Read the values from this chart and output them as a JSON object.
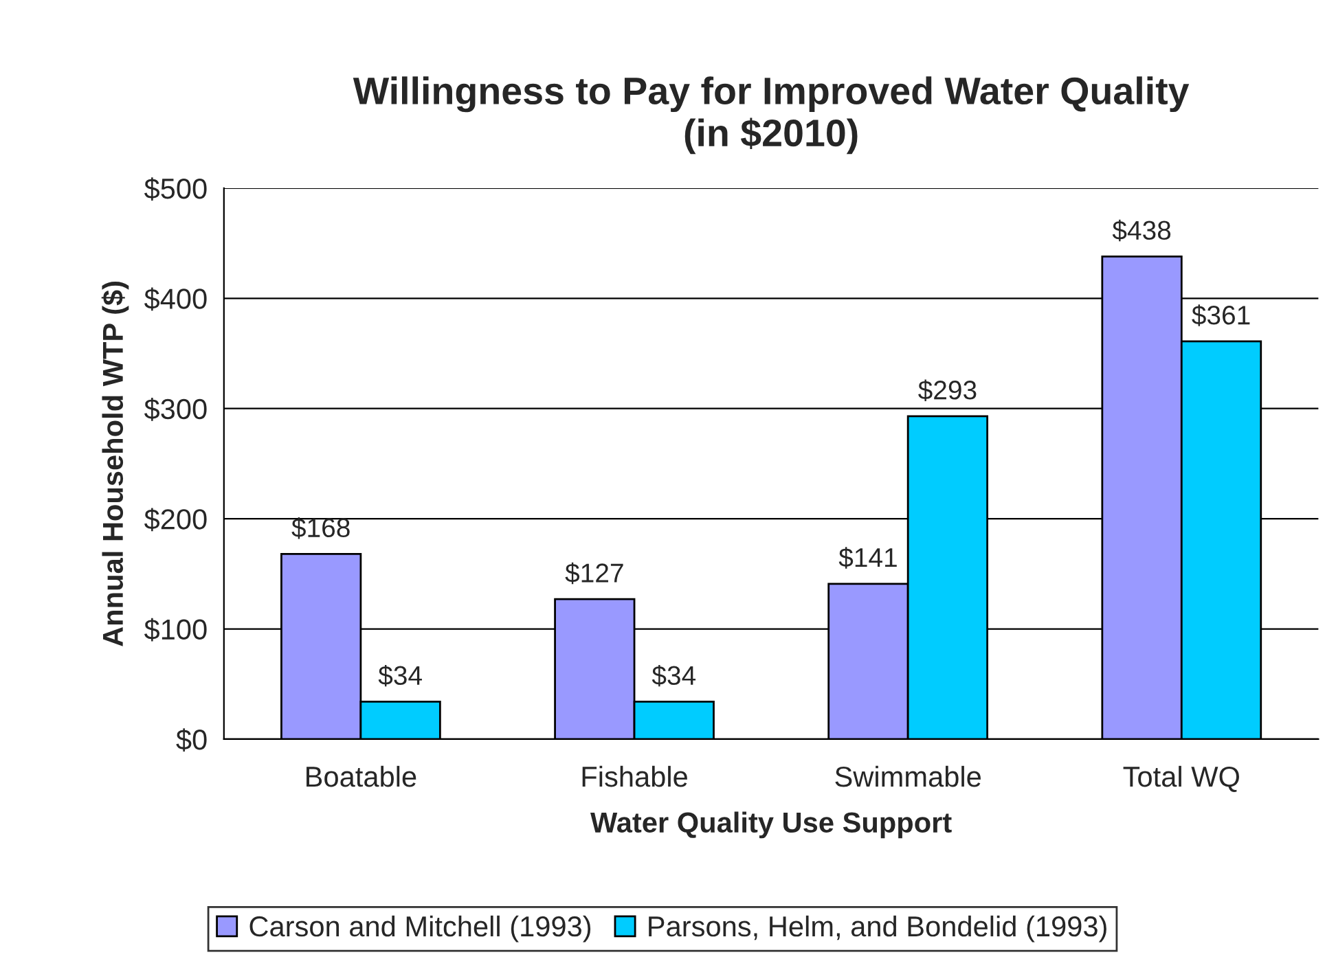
{
  "chart_data": {
    "type": "bar",
    "title": "Willingness to Pay for Improved Water Quality\n(in $2010)",
    "xlabel": "Water Quality Use Support",
    "ylabel": "Annual Household WTP ($)",
    "categories": [
      "Boatable",
      "Fishable",
      "Swimmable",
      "Total WQ"
    ],
    "series": [
      {
        "name": "Carson and Mitchell (1993)",
        "color": "#9999ff",
        "values": [
          168,
          127,
          141,
          438
        ],
        "value_labels": [
          "$168",
          "$127",
          "$141",
          "$438"
        ]
      },
      {
        "name": "Parsons, Helm, and Bondelid (1993)",
        "color": "#00ccff",
        "values": [
          34,
          34,
          293,
          361
        ],
        "value_labels": [
          "$34",
          "$34",
          "$293",
          "$361"
        ]
      }
    ],
    "ylim": [
      0,
      500
    ],
    "yticks": [
      {
        "value": 0,
        "label": "$0"
      },
      {
        "value": 100,
        "label": "$100"
      },
      {
        "value": 200,
        "label": "$200"
      },
      {
        "value": 300,
        "label": "$300"
      },
      {
        "value": 400,
        "label": "$400"
      },
      {
        "value": 500,
        "label": "$500"
      }
    ],
    "grid": "y",
    "legend": "bottom"
  }
}
